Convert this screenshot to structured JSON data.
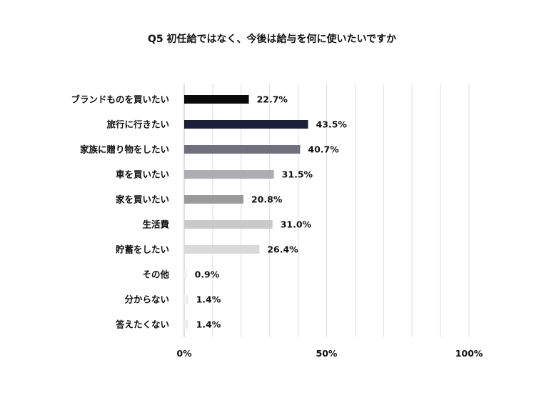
{
  "chart_data": {
    "type": "bar",
    "orientation": "horizontal",
    "title": "Q5 初任給ではなく、今後は給与を何に使いたいですか",
    "categories": [
      "ブランドものを買いたい",
      "旅行に行きたい",
      "家族に贈り物をしたい",
      "車を買いたい",
      "家を買いたい",
      "生活費",
      "貯蓄をしたい",
      "その他",
      "分からない",
      "答えたくない"
    ],
    "values": [
      22.7,
      43.5,
      40.7,
      31.5,
      20.8,
      31.0,
      26.4,
      0.9,
      1.4,
      1.4
    ],
    "value_labels": [
      "22.7%",
      "43.5%",
      "40.7%",
      "31.5%",
      "20.8%",
      "31.0%",
      "26.4%",
      "0.9%",
      "1.4%",
      "1.4%"
    ],
    "bar_colors": [
      "#0a0a0a",
      "#1b1f3a",
      "#6f6f7e",
      "#adadb3",
      "#9b9b9b",
      "#c9c9c9",
      "#d9d9d9",
      "#eeeeee",
      "#eeeeee",
      "#eeeeee"
    ],
    "xlim": [
      0,
      100
    ],
    "xticks": [
      0,
      50,
      100
    ],
    "xtick_labels": [
      "0%",
      "50%",
      "100%"
    ],
    "xlabel": "",
    "ylabel": "",
    "grid": true,
    "gridline_color": "#dddddd"
  }
}
